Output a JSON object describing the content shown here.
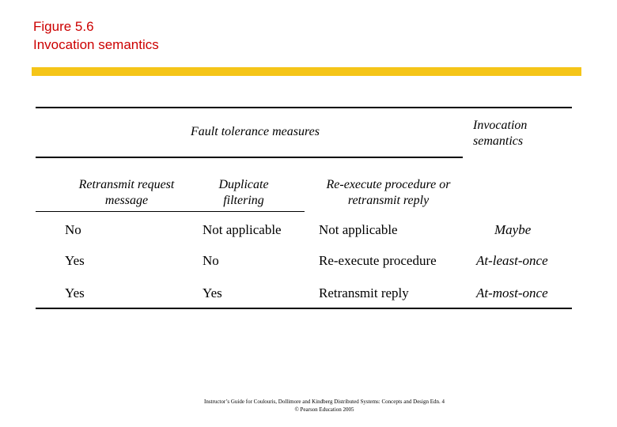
{
  "title": {
    "line1": "Figure 5.6",
    "line2": "Invocation semantics"
  },
  "colors": {
    "title": "#cc0000",
    "accent_bar": "#f5c518"
  },
  "table": {
    "group_header": "Fault tolerance measures",
    "result_header": "Invocation semantics",
    "columns": [
      "Retransmit request message",
      "Duplicate filtering",
      "Re-execute procedure or retransmit reply"
    ],
    "rows": [
      [
        "No",
        "Not applicable",
        "Not applicable",
        "Maybe"
      ],
      [
        "Yes",
        "No",
        "Re-execute procedure",
        "At-least-once"
      ],
      [
        "Yes",
        "Yes",
        "Retransmit reply",
        "At-most-once"
      ]
    ]
  },
  "footer": {
    "line1": "Instructor’s Guide for Coulouris, Dollimore and Kindberg Distributed Systems: Concepts and Design Edn. 4",
    "line2": "© Pearson Education 2005"
  }
}
